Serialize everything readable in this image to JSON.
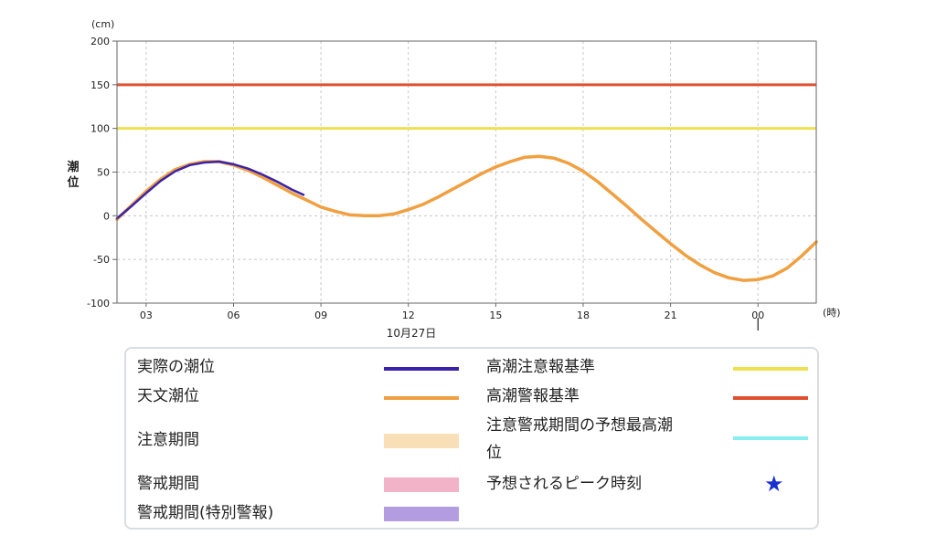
{
  "chart_data": {
    "type": "line",
    "y_unit": "(cm)",
    "y_label": "潮位",
    "x_unit": "(時)",
    "date_label": "10月27日",
    "x_ticks": [
      "03",
      "06",
      "09",
      "12",
      "15",
      "18",
      "21",
      "00"
    ],
    "x_tick_hours": [
      3,
      6,
      9,
      12,
      15,
      18,
      21,
      24
    ],
    "xlim": [
      2,
      26
    ],
    "y_ticks": [
      200,
      150,
      100,
      50,
      0,
      -50,
      -100
    ],
    "ylim": [
      -100,
      200
    ],
    "grid": true,
    "series": [
      {
        "name": "天文潮位",
        "color": "#f0a040",
        "x": [
          2,
          2.5,
          3,
          3.5,
          4,
          4.5,
          5,
          5.5,
          6,
          6.5,
          7,
          7.5,
          8,
          8.5,
          9,
          9.5,
          10,
          10.5,
          11,
          11.5,
          12,
          12.5,
          13,
          13.5,
          14,
          14.5,
          15,
          15.5,
          16,
          16.5,
          17,
          17.5,
          18,
          18.5,
          19,
          19.5,
          20,
          20.5,
          21,
          21.5,
          22,
          22.5,
          23,
          23.5,
          24,
          24.5,
          25,
          25.5,
          26
        ],
        "y": [
          -4,
          12,
          28,
          42,
          53,
          59,
          62,
          62,
          58,
          52,
          44,
          35,
          26,
          18,
          10,
          5,
          1,
          0,
          0,
          2,
          7,
          13,
          21,
          30,
          39,
          48,
          56,
          62,
          67,
          68,
          66,
          60,
          51,
          39,
          25,
          11,
          -4,
          -18,
          -32,
          -45,
          -56,
          -65,
          -71,
          -74,
          -73,
          -69,
          -60,
          -46,
          -30
        ]
      },
      {
        "name": "実際の潮位",
        "color": "#3a22aa",
        "x": [
          2,
          2.5,
          3,
          3.5,
          4,
          4.5,
          5,
          5.5,
          6,
          6.5,
          7,
          7.5,
          8,
          8.4
        ],
        "y": [
          -3,
          11,
          26,
          40,
          51,
          58,
          61,
          62,
          59,
          54,
          47,
          39,
          30,
          24
        ]
      }
    ],
    "thresholds": [
      {
        "name": "高潮警報基準",
        "value": 150,
        "color": "#e05030"
      },
      {
        "name": "高潮注意報基準",
        "value": 100,
        "color": "#eee050"
      }
    ],
    "peak_marker_hour": 24
  },
  "legend": {
    "left": [
      {
        "label": "実際の潮位",
        "kind": "line",
        "color": "#3a22aa"
      },
      {
        "label": "天文潮位",
        "kind": "line",
        "color": "#f0a040"
      },
      {
        "label": "注意期間",
        "kind": "block",
        "color": "#f8dfb8"
      },
      {
        "label": "警戒期間",
        "kind": "block",
        "color": "#f2b2c8"
      },
      {
        "label": "警戒期間(特別警報)",
        "kind": "block",
        "color": "#b49ce0"
      }
    ],
    "right": [
      {
        "label": "高潮注意報基準",
        "kind": "line",
        "color": "#eee050"
      },
      {
        "label": "高潮警報基準",
        "kind": "line",
        "color": "#e05030"
      },
      {
        "label1": "注意警戒期間の予想最高潮",
        "label2": "位",
        "kind": "line",
        "color": "#88eef0"
      },
      {
        "label": "予想されるピーク時刻",
        "kind": "star",
        "color": "#1a2fd0",
        "glyph": "★"
      }
    ]
  }
}
